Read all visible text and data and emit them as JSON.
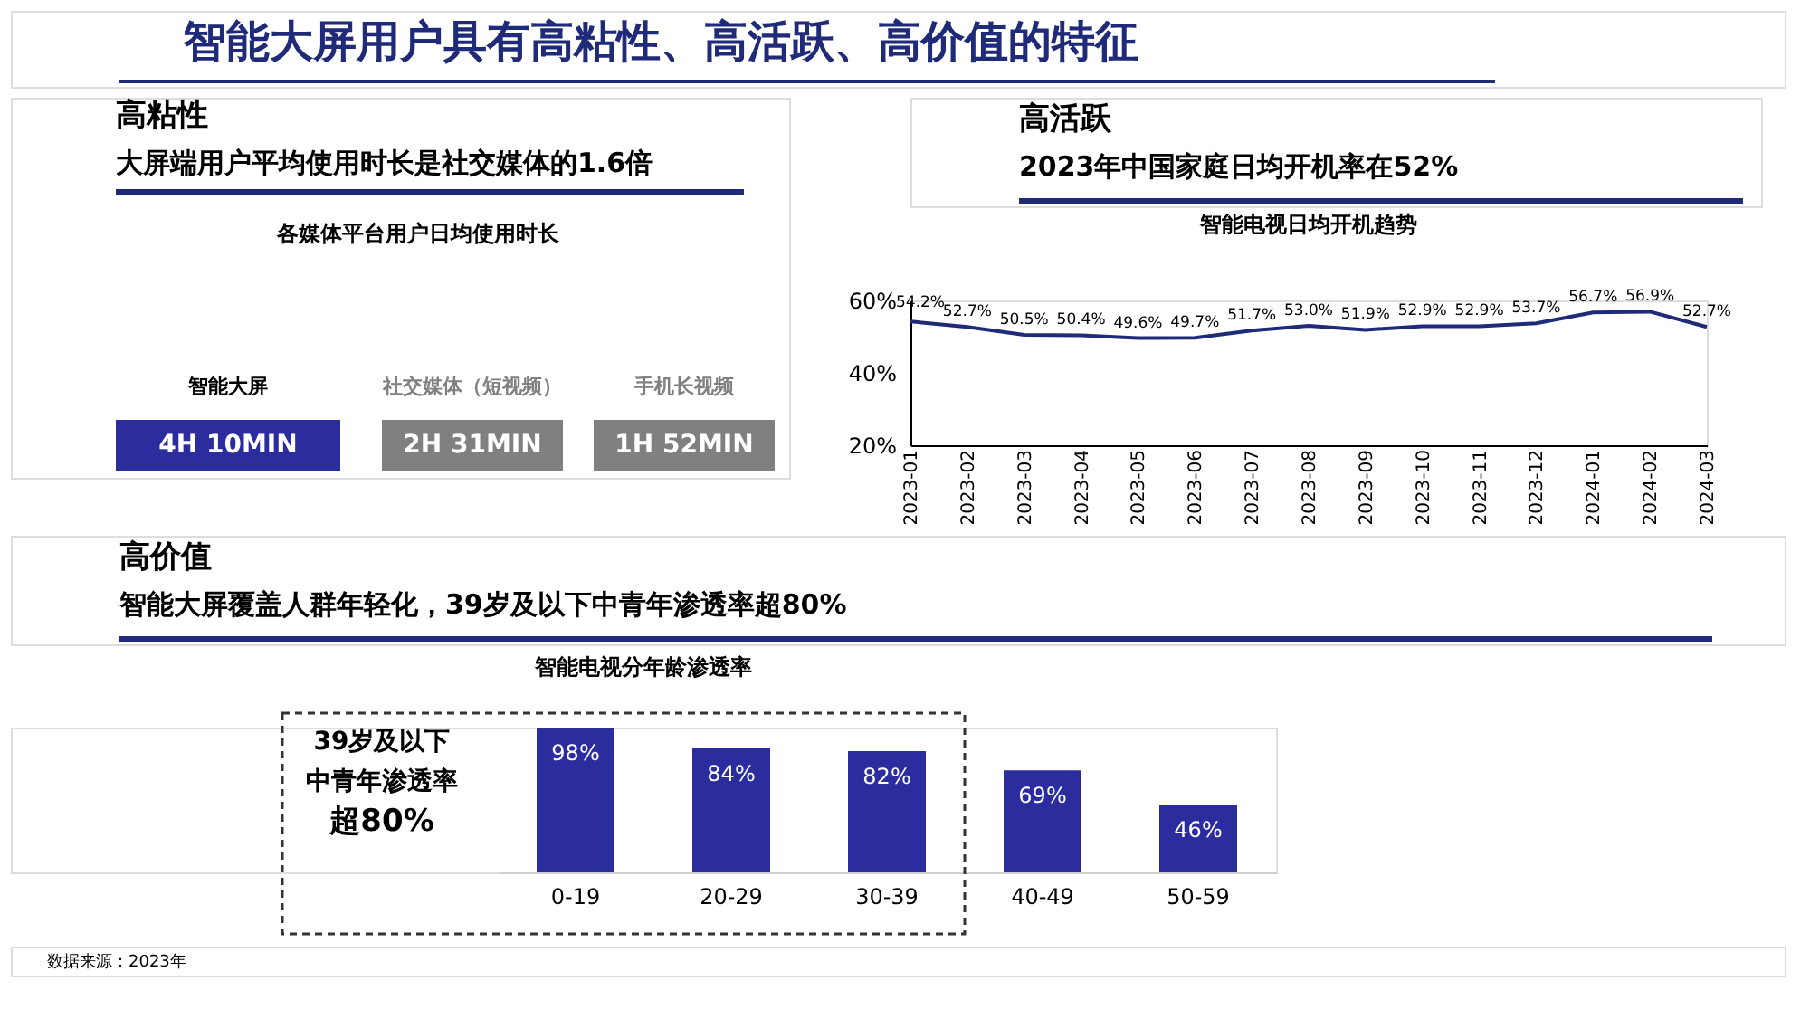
{
  "chart_data": [
    {
      "type": "other",
      "title": "智能大屏用户具有高粘性、高活跃、高价值的特征"
    },
    {
      "type": "other",
      "title": "各媒体平台用户日均使用时长",
      "annotations": [
        "高粘性",
        "大屏端用户平均使用时长是社交媒体的1.6倍"
      ],
      "categories": [
        "智能大屏",
        "社交媒体（短视频）",
        "手机长视频"
      ],
      "value_labels": [
        "4H 10MIN",
        "2H 31MIN",
        "1H 52MIN"
      ],
      "colors": [
        "#2b2d9e",
        "#808080",
        "#808080"
      ]
    },
    {
      "type": "line",
      "title": "智能电视日均开机趋势",
      "annotations": [
        "高活跃",
        "2023年中国家庭日均开机率在52%"
      ],
      "categories": [
        "2023-01",
        "2023-02",
        "2023-03",
        "2023-04",
        "2023-05",
        "2023-06",
        "2023-07",
        "2023-08",
        "2023-09",
        "2023-10",
        "2023-11",
        "2023-12",
        "2024-01",
        "2024-02",
        "2024-03"
      ],
      "series": [
        {
          "color": "#1f2a78",
          "values": [
            54.2,
            52.7,
            50.5,
            50.4,
            49.6,
            49.7,
            51.7,
            53.0,
            51.9,
            52.9,
            52.9,
            53.7,
            56.7,
            56.9,
            52.7
          ],
          "value_labels": [
            "54.2%",
            "52.7%",
            "50.5%",
            "50.4%",
            "49.6%",
            "49.7%",
            "51.7%",
            "53.0%",
            "51.9%",
            "52.9%",
            "52.9%",
            "53.7%",
            "56.7%",
            "56.9%",
            "52.7%"
          ]
        }
      ],
      "ylim": [
        20,
        60
      ],
      "yticks": [
        {
          "value": 20,
          "label": "20%"
        },
        {
          "value": 40,
          "label": "40%"
        },
        {
          "value": 60,
          "label": "60%"
        }
      ],
      "grid": false,
      "marker": "none"
    },
    {
      "type": "bar",
      "title": "智能电视分年龄渗透率",
      "annotations": [
        "高价值",
        "智能大屏覆盖人群年轻化，39岁及以下中青年渗透率超80%",
        "39岁及以下",
        "中青年渗透率",
        "超80%",
        "数据来源：2023年"
      ],
      "categories": [
        "0-19",
        "20-29",
        "30-39",
        "40-49",
        "50-59"
      ],
      "values": [
        98,
        84,
        82,
        69,
        46
      ],
      "color": "#2b2d9e",
      "value_labels": [
        "98%",
        "84%",
        "82%",
        "69%",
        "46%"
      ]
    }
  ]
}
